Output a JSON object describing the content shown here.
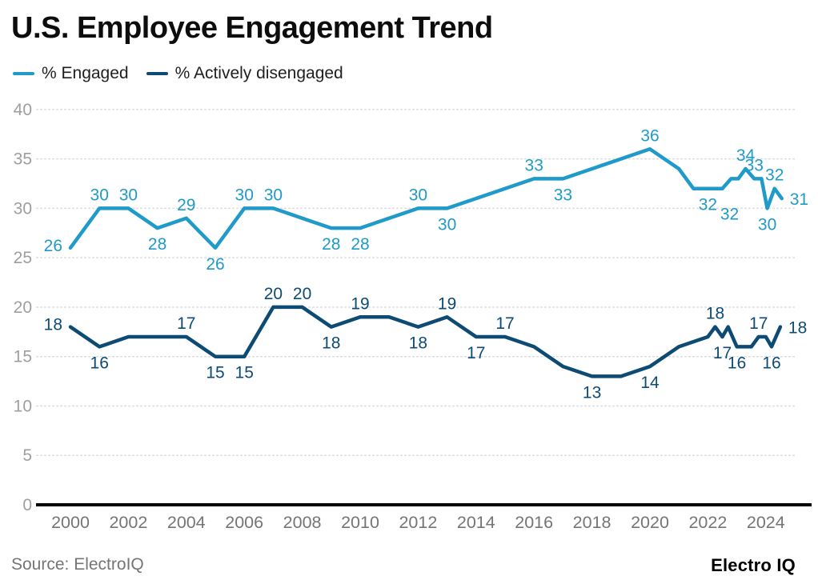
{
  "header": {
    "title": "U.S. Employee Engagement Trend"
  },
  "legend": {
    "items": [
      {
        "label": "% Engaged",
        "color": "#1F9AC9"
      },
      {
        "label": "% Actively disengaged",
        "color": "#0E4B74"
      }
    ]
  },
  "footer": {
    "source": "Source: ElectroIQ",
    "brand": "Electro IQ"
  },
  "colors": {
    "engaged": "#1F9AC9",
    "disengaged": "#0E4B74",
    "grid": "#DEDEDE",
    "axis": "#000000",
    "y_tick_label": "#9E9E9E",
    "x_tick_label": "#757575"
  },
  "chart_data": {
    "type": "line",
    "title": "U.S. Employee Engagement Trend",
    "xlabel": "",
    "ylabel": "",
    "ylim": [
      0,
      40
    ],
    "y_ticks": [
      0,
      5,
      10,
      15,
      20,
      25,
      30,
      35,
      40
    ],
    "x_ticks": [
      2000,
      2002,
      2004,
      2006,
      2008,
      2010,
      2012,
      2014,
      2016,
      2018,
      2020,
      2022,
      2024
    ],
    "grid": true,
    "grid_style": "dashed",
    "legend_position": "top-left",
    "series": [
      {
        "name": "% Engaged",
        "color": "#1F9AC9",
        "points": [
          {
            "x": 2000,
            "y": 26,
            "label": "26",
            "label_pos": "left"
          },
          {
            "x": 2001,
            "y": 30,
            "label": "30",
            "label_pos": "above"
          },
          {
            "x": 2002,
            "y": 30,
            "label": "30",
            "label_pos": "above"
          },
          {
            "x": 2003,
            "y": 28,
            "label": "28",
            "label_pos": "below"
          },
          {
            "x": 2004,
            "y": 29,
            "label": "29",
            "label_pos": "above"
          },
          {
            "x": 2005,
            "y": 26,
            "label": "26",
            "label_pos": "below"
          },
          {
            "x": 2006,
            "y": 30,
            "label": "30",
            "label_pos": "above"
          },
          {
            "x": 2007,
            "y": 30,
            "label": "30",
            "label_pos": "above"
          },
          {
            "x": 2008,
            "y": 29
          },
          {
            "x": 2009,
            "y": 28,
            "label": "28",
            "label_pos": "below"
          },
          {
            "x": 2010,
            "y": 28,
            "label": "28",
            "label_pos": "below"
          },
          {
            "x": 2011,
            "y": 29
          },
          {
            "x": 2012,
            "y": 30,
            "label": "30",
            "label_pos": "above"
          },
          {
            "x": 2013,
            "y": 30,
            "label": "30",
            "label_pos": "below"
          },
          {
            "x": 2014,
            "y": 31
          },
          {
            "x": 2015,
            "y": 32
          },
          {
            "x": 2016,
            "y": 33,
            "label": "33",
            "label_pos": "above"
          },
          {
            "x": 2017,
            "y": 33,
            "label": "33",
            "label_pos": "below"
          },
          {
            "x": 2018,
            "y": 34
          },
          {
            "x": 2019,
            "y": 35
          },
          {
            "x": 2020,
            "y": 36,
            "label": "36",
            "label_pos": "above"
          },
          {
            "x": 2021,
            "y": 34
          },
          {
            "x": 2021.5,
            "y": 32
          },
          {
            "x": 2022,
            "y": 32,
            "label": "32",
            "label_pos": "below"
          },
          {
            "x": 2022.5,
            "y": 32,
            "label": "32",
            "label_pos": "below-right"
          },
          {
            "x": 2022.8,
            "y": 33
          },
          {
            "x": 2023.05,
            "y": 33
          },
          {
            "x": 2023.3,
            "y": 34,
            "label": "34",
            "label_pos": "above"
          },
          {
            "x": 2023.6,
            "y": 33,
            "label": "33",
            "label_pos": "above"
          },
          {
            "x": 2023.85,
            "y": 33
          },
          {
            "x": 2024.05,
            "y": 30,
            "label": "30",
            "label_pos": "below"
          },
          {
            "x": 2024.3,
            "y": 32,
            "label": "32",
            "label_pos": "above"
          },
          {
            "x": 2024.55,
            "y": 31,
            "label": "31",
            "label_pos": "right"
          }
        ]
      },
      {
        "name": "% Actively disengaged",
        "color": "#0E4B74",
        "points": [
          {
            "x": 2000,
            "y": 18,
            "label": "18",
            "label_pos": "left"
          },
          {
            "x": 2001,
            "y": 16,
            "label": "16",
            "label_pos": "below"
          },
          {
            "x": 2002,
            "y": 17
          },
          {
            "x": 2003,
            "y": 17
          },
          {
            "x": 2004,
            "y": 17,
            "label": "17",
            "label_pos": "above"
          },
          {
            "x": 2005,
            "y": 15,
            "label": "15",
            "label_pos": "below"
          },
          {
            "x": 2006,
            "y": 15,
            "label": "15",
            "label_pos": "below"
          },
          {
            "x": 2007,
            "y": 20,
            "label": "20",
            "label_pos": "above"
          },
          {
            "x": 2008,
            "y": 20,
            "label": "20",
            "label_pos": "above"
          },
          {
            "x": 2009,
            "y": 18,
            "label": "18",
            "label_pos": "below"
          },
          {
            "x": 2010,
            "y": 19,
            "label": "19",
            "label_pos": "above"
          },
          {
            "x": 2011,
            "y": 19
          },
          {
            "x": 2012,
            "y": 18,
            "label": "18",
            "label_pos": "below"
          },
          {
            "x": 2013,
            "y": 19,
            "label": "19",
            "label_pos": "above"
          },
          {
            "x": 2014,
            "y": 17,
            "label": "17",
            "label_pos": "below"
          },
          {
            "x": 2015,
            "y": 17,
            "label": "17",
            "label_pos": "above"
          },
          {
            "x": 2016,
            "y": 16
          },
          {
            "x": 2017,
            "y": 14
          },
          {
            "x": 2018,
            "y": 13,
            "label": "13",
            "label_pos": "below"
          },
          {
            "x": 2019,
            "y": 13
          },
          {
            "x": 2020,
            "y": 14,
            "label": "14",
            "label_pos": "below"
          },
          {
            "x": 2021,
            "y": 16
          },
          {
            "x": 2022,
            "y": 17
          },
          {
            "x": 2022.25,
            "y": 18,
            "label": "18",
            "label_pos": "above"
          },
          {
            "x": 2022.5,
            "y": 17,
            "label": "17",
            "label_pos": "below"
          },
          {
            "x": 2022.7,
            "y": 18
          },
          {
            "x": 2023,
            "y": 16,
            "label": "16",
            "label_pos": "below"
          },
          {
            "x": 2023.5,
            "y": 16
          },
          {
            "x": 2023.75,
            "y": 17,
            "label": "17",
            "label_pos": "above"
          },
          {
            "x": 2024,
            "y": 17
          },
          {
            "x": 2024.2,
            "y": 16,
            "label": "16",
            "label_pos": "below"
          },
          {
            "x": 2024.5,
            "y": 18,
            "label": "18",
            "label_pos": "right"
          }
        ]
      }
    ]
  }
}
